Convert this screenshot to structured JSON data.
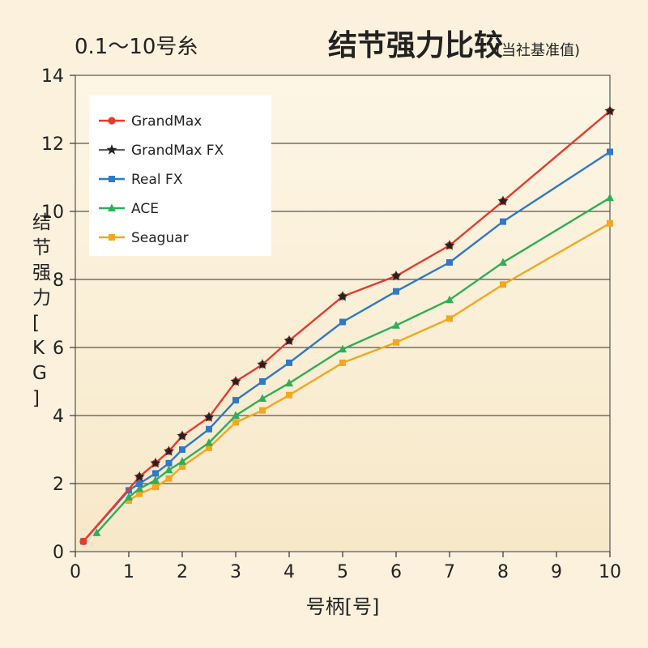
{
  "chart_data": {
    "type": "line",
    "subtitle": "0.1～10号糸",
    "title": "结节强力比较",
    "title_note": "(当社基准值)",
    "xlabel": "号柄[号]",
    "ylabel": "结节强力[KG]",
    "xlim": [
      0,
      10
    ],
    "ylim": [
      0,
      14
    ],
    "xticks": [
      0,
      1,
      2,
      3,
      4,
      5,
      6,
      7,
      8,
      9,
      10
    ],
    "yticks": [
      0,
      2,
      4,
      6,
      8,
      10,
      12,
      14
    ],
    "grid": "horizontal",
    "legend_position": "top-left",
    "series": [
      {
        "name": "GrandMax",
        "color": "#e63a2e",
        "marker": "circle",
        "x": [
          0.15,
          1.2,
          1.5,
          1.75,
          2,
          2.5,
          3,
          3.5,
          4,
          5,
          6,
          7,
          8,
          10
        ],
        "y": [
          0.3,
          2.2,
          2.6,
          2.95,
          3.4,
          3.95,
          5.0,
          5.5,
          6.2,
          7.5,
          8.1,
          9.0,
          10.3,
          12.95
        ]
      },
      {
        "name": "GrandMax FX",
        "color": "#222222",
        "marker": "star",
        "x": [
          1.2,
          1.5,
          1.75,
          2,
          2.5,
          3,
          3.5,
          4,
          5,
          6,
          7,
          8,
          10
        ],
        "y": [
          2.2,
          2.6,
          2.95,
          3.4,
          3.95,
          5.0,
          5.5,
          6.2,
          7.5,
          8.1,
          9.0,
          10.3,
          12.95
        ]
      },
      {
        "name": "Real FX",
        "color": "#2f79c6",
        "marker": "square",
        "x": [
          0.15,
          1,
          1.2,
          1.5,
          1.75,
          2,
          2.5,
          3,
          3.5,
          4,
          5,
          6,
          7,
          8,
          10
        ],
        "y": [
          0.3,
          1.8,
          2.0,
          2.3,
          2.6,
          3.0,
          3.6,
          4.45,
          5.0,
          5.55,
          6.75,
          7.65,
          8.5,
          9.7,
          11.75
        ]
      },
      {
        "name": "ACE",
        "color": "#2fae57",
        "marker": "triangle",
        "x": [
          0.4,
          1,
          1.2,
          1.5,
          1.75,
          2,
          2.5,
          3,
          3.5,
          4,
          5,
          6,
          7,
          8,
          10
        ],
        "y": [
          0.55,
          1.6,
          1.85,
          2.1,
          2.4,
          2.65,
          3.2,
          4.0,
          4.5,
          4.95,
          5.95,
          6.65,
          7.4,
          8.5,
          10.4
        ]
      },
      {
        "name": "Seaguar",
        "color": "#f0a820",
        "marker": "square",
        "x": [
          1,
          1.2,
          1.5,
          1.75,
          2,
          2.5,
          3,
          3.5,
          4,
          5,
          6,
          7,
          8,
          10
        ],
        "y": [
          1.5,
          1.7,
          1.9,
          2.15,
          2.5,
          3.05,
          3.8,
          4.15,
          4.6,
          5.55,
          6.15,
          6.85,
          7.85,
          9.65
        ]
      }
    ]
  }
}
